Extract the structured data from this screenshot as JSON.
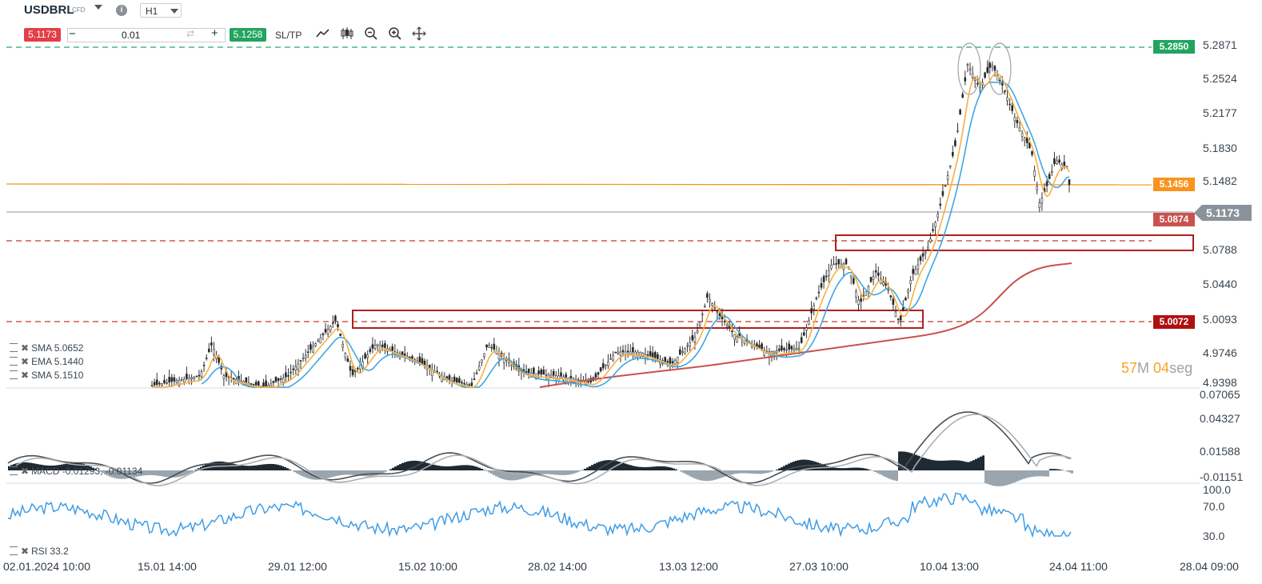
{
  "header": {
    "symbol": "USDBRL",
    "symbol_type": "CFD",
    "info_icon": "i",
    "timeframe": "H1"
  },
  "trade_bar": {
    "sell_price": "5.1173",
    "quantity": "0.01",
    "buy_price": "5.1258",
    "sltp_label": "SL/TP",
    "minus": "−",
    "plus": "+",
    "swap_icon": "⇄"
  },
  "price_axis": {
    "ticks": [
      "5.2871",
      "5.2524",
      "5.2177",
      "5.1830",
      "5.1482",
      "5.0788",
      "5.0440",
      "5.0093",
      "4.9746",
      "4.9398"
    ],
    "levels": {
      "resistance_top": "5.2850",
      "orange_line": "5.1456",
      "current": "5.1173",
      "support_1": "5.0874",
      "support_2": "5.0072"
    }
  },
  "macd_axis": {
    "ticks": [
      "0.07065",
      "0.04327",
      "0.01588",
      "-0.01151"
    ]
  },
  "rsi_axis": {
    "ticks": [
      "100.0",
      "70.0",
      "30.0"
    ]
  },
  "time_axis": [
    "02.01.2024 10:00",
    "15.01 14:00",
    "29.01 12:00",
    "15.02 10:00",
    "28.02 14:00",
    "13.03 12:00",
    "27.03 10:00",
    "10.04 13:00",
    "24.04 11:00",
    "28.04 09:00"
  ],
  "indicators": {
    "sma1": "SMA 5.0652",
    "ema": "EMA 5.1440",
    "sma2": "SMA 5.1510",
    "macd": "MACD -0.01293, -0.01134",
    "rsi": "RSI 33.2"
  },
  "countdown": {
    "minutes": "57",
    "min_unit": "M",
    "seconds": "04",
    "sec_unit": "seg"
  },
  "colors": {
    "sell": "#e33e46",
    "buy": "#22a460",
    "resistance": "#26a872",
    "orange": "#f7931e",
    "support": "#c0392b",
    "sma_red": "#c9524e",
    "ema_orange": "#f6b042",
    "sma_blue": "#3fa7e0",
    "rsi": "#3f9de6"
  },
  "icons": [
    "line-chart-icon",
    "candles-icon",
    "zoom-out-icon",
    "zoom-in-icon",
    "move-icon"
  ]
}
